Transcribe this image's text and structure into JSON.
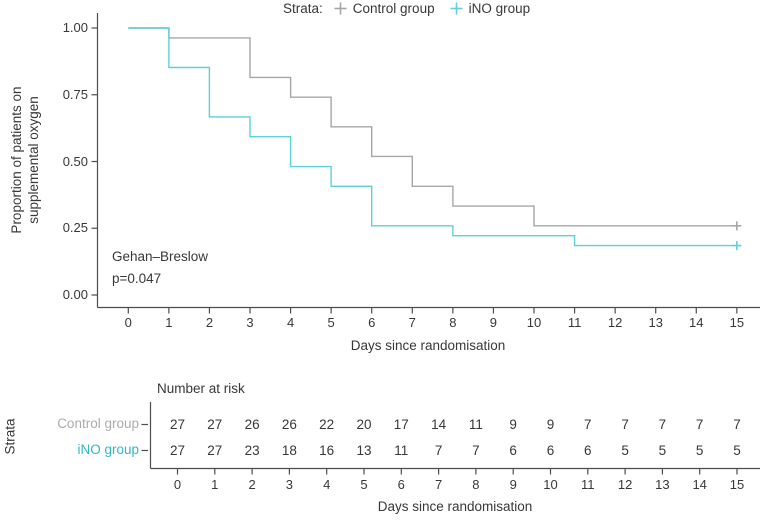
{
  "legend": {
    "title": "Strata:",
    "items": [
      {
        "label": "Control group",
        "marker": "plus-icon"
      },
      {
        "label": "iNO group",
        "marker": "plus-icon"
      }
    ]
  },
  "annotation": {
    "line1": "Gehan–Breslow",
    "line2": "p=0.047"
  },
  "colors": {
    "control_line": "#A6A6A6",
    "control_label": "#ABABAB",
    "ino_line": "#5ED0D8",
    "ino_label": "#2FB9C4",
    "axis": "#4D4D4D",
    "text": "#383838"
  },
  "chart_data": {
    "type": "line",
    "subtype": "kaplan-meier-step",
    "title": "",
    "xlabel": "Days since randomisation",
    "ylabel": "Proportion of patients on supplemental oxygen",
    "ylabel_lines": [
      "Proportion of patients on",
      "supplemental oxygen"
    ],
    "xlim": [
      0,
      15
    ],
    "ylim": [
      0.0,
      1.0
    ],
    "grid": false,
    "legend_position": "top",
    "x_ticks": [
      "0",
      "1",
      "2",
      "3",
      "4",
      "5",
      "6",
      "7",
      "8",
      "9",
      "10",
      "11",
      "12",
      "13",
      "14",
      "15"
    ],
    "y_ticks": [
      "0.00",
      "0.25",
      "0.50",
      "0.75",
      "1.00"
    ],
    "y_tick_values": [
      0.0,
      0.25,
      0.5,
      0.75,
      1.0
    ],
    "series": [
      {
        "name": "Control group",
        "steps": [
          [
            0,
            1.0
          ],
          [
            1,
            0.963
          ],
          [
            3,
            0.815
          ],
          [
            4,
            0.741
          ],
          [
            5,
            0.63
          ],
          [
            6,
            0.519
          ],
          [
            7,
            0.407
          ],
          [
            8,
            0.333
          ],
          [
            10,
            0.259
          ]
        ],
        "end_day": 15,
        "censor_marks": [
          [
            15,
            0.259
          ]
        ]
      },
      {
        "name": "iNO group",
        "steps": [
          [
            0,
            1.0
          ],
          [
            1,
            0.852
          ],
          [
            2,
            0.667
          ],
          [
            3,
            0.593
          ],
          [
            4,
            0.481
          ],
          [
            5,
            0.407
          ],
          [
            6,
            0.259
          ],
          [
            8,
            0.222
          ],
          [
            11,
            0.185
          ]
        ],
        "end_day": 15,
        "censor_marks": [
          [
            15,
            0.185
          ]
        ]
      }
    ]
  },
  "risk_table": {
    "title": "Number at risk",
    "strata_label": "Strata",
    "xlabel": "Days since randomisation",
    "days": [
      "0",
      "1",
      "2",
      "3",
      "4",
      "5",
      "6",
      "7",
      "8",
      "9",
      "10",
      "11",
      "12",
      "13",
      "14",
      "15"
    ],
    "rows": [
      {
        "label": "Control group",
        "values": [
          "27",
          "27",
          "26",
          "26",
          "22",
          "20",
          "17",
          "14",
          "11",
          "9",
          "9",
          "7",
          "7",
          "7",
          "7",
          "7"
        ]
      },
      {
        "label": "iNO group",
        "values": [
          "27",
          "27",
          "23",
          "18",
          "16",
          "13",
          "11",
          "7",
          "7",
          "6",
          "6",
          "6",
          "5",
          "5",
          "5",
          "5"
        ]
      }
    ]
  }
}
